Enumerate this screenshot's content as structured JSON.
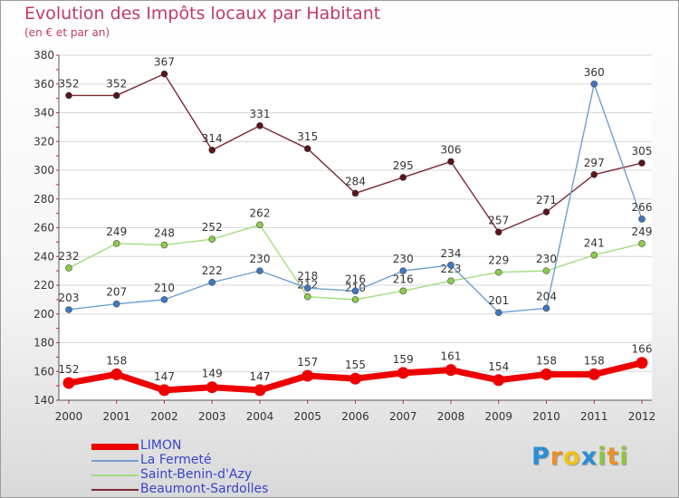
{
  "title": "Evolution des Impôts locaux par Habitant",
  "subtitle": "(en € et par an)",
  "brand": {
    "letters": [
      {
        "ch": "P",
        "color": "#2a8fd4"
      },
      {
        "ch": "r",
        "color": "#e8902a"
      },
      {
        "ch": "o",
        "color": "#f2c118"
      },
      {
        "ch": "x",
        "color": "#2a8fd4"
      },
      {
        "ch": "i",
        "color": "#8cc63f"
      },
      {
        "ch": "t",
        "color": "#e8902a"
      },
      {
        "ch": "i",
        "color": "#8cc63f"
      }
    ]
  },
  "chart_data": {
    "type": "line",
    "x": [
      "2000",
      "2001",
      "2002",
      "2003",
      "2004",
      "2005",
      "2006",
      "2007",
      "2008",
      "2009",
      "2010",
      "2011",
      "2012"
    ],
    "ylim": [
      140,
      380
    ],
    "yticks": [
      140,
      160,
      180,
      200,
      220,
      240,
      260,
      280,
      300,
      320,
      340,
      360,
      380
    ],
    "grid": "horizontal",
    "legend_position": "bottom-left",
    "series": [
      {
        "name": "LIMON",
        "color": "#ee0000",
        "marker": "#ee0000",
        "values": [
          152,
          158,
          147,
          149,
          147,
          157,
          155,
          159,
          161,
          154,
          158,
          158,
          166
        ]
      },
      {
        "name": "La Fermeté",
        "color": "#6f9fcf",
        "marker": "#3f78c0",
        "values": [
          203,
          207,
          210,
          222,
          230,
          218,
          216,
          230,
          234,
          201,
          204,
          360,
          266
        ]
      },
      {
        "name": "Saint-Benin-d'Azy",
        "color": "#a3dc80",
        "marker": "#8ccc4c",
        "values": [
          232,
          249,
          248,
          252,
          262,
          212,
          210,
          216,
          223,
          229,
          230,
          241,
          249
        ]
      },
      {
        "name": "Beaumont-Sardolles",
        "color": "#7a2a33",
        "marker": "#5a1418",
        "values": [
          352,
          352,
          367,
          314,
          331,
          315,
          284,
          295,
          306,
          257,
          271,
          297,
          305
        ]
      }
    ]
  }
}
